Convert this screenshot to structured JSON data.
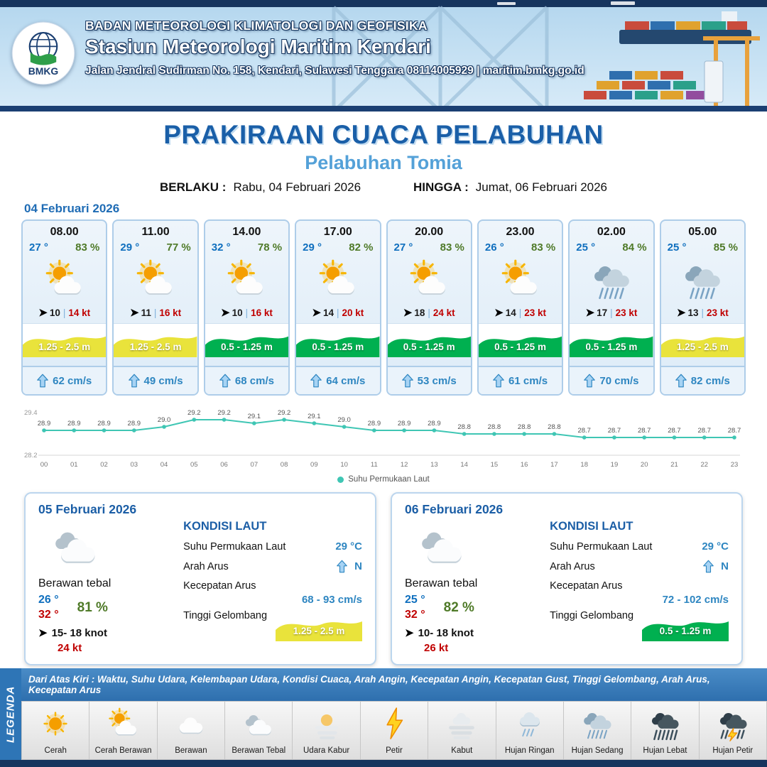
{
  "header": {
    "agency": "BADAN METEOROLOGI KLIMATOLOGI DAN GEOFISIKA",
    "station": "Stasiun Meteorologi Maritim Kendari",
    "address": "Jalan Jendral Sudirman No. 158, Kendari, Sulawesi Tenggara  08114005929 | maritim.bmkg.go.id",
    "logo_text": "BMKG"
  },
  "title": {
    "main": "PRAKIRAAN CUACA PELABUHAN",
    "subtitle": "Pelabuhan Tomia",
    "berlaku_label": "BERLAKU :",
    "berlaku_value": "Rabu, 04 Februari 2026",
    "hingga_label": "HINGGA :",
    "hingga_value": "Jumat, 06 Februari 2026"
  },
  "hourly": {
    "date": "04 Februari 2026",
    "cards": [
      {
        "time": "08.00",
        "temp": "27 °",
        "humidity": "83 %",
        "icon": "cerah-berawan",
        "wind": "10",
        "sep": "|",
        "gust": "14 kt",
        "wave": "1.25 - 2.5 m",
        "wave_color": "#e9e33b",
        "current": "62 cm/s"
      },
      {
        "time": "11.00",
        "temp": "29 °",
        "humidity": "77 %",
        "icon": "cerah-berawan",
        "wind": "11",
        "sep": "|",
        "gust": "16 kt",
        "wave": "1.25 - 2.5 m",
        "wave_color": "#e9e33b",
        "current": "49 cm/s"
      },
      {
        "time": "14.00",
        "temp": "32 °",
        "humidity": "78 %",
        "icon": "cerah-berawan",
        "wind": "10",
        "sep": "|",
        "gust": "16 kt",
        "wave": "0.5 - 1.25 m",
        "wave_color": "#00b050",
        "current": "68 cm/s"
      },
      {
        "time": "17.00",
        "temp": "29 °",
        "humidity": "82 %",
        "icon": "cerah-berawan",
        "wind": "14",
        "sep": "|",
        "gust": "20 kt",
        "wave": "0.5 - 1.25 m",
        "wave_color": "#00b050",
        "current": "64 cm/s"
      },
      {
        "time": "20.00",
        "temp": "27 °",
        "humidity": "83 %",
        "icon": "cerah-berawan",
        "wind": "18",
        "sep": "|",
        "gust": "24 kt",
        "wave": "0.5 - 1.25 m",
        "wave_color": "#00b050",
        "current": "53 cm/s"
      },
      {
        "time": "23.00",
        "temp": "26 °",
        "humidity": "83 %",
        "icon": "cerah-berawan",
        "wind": "14",
        "sep": "|",
        "gust": "23 kt",
        "wave": "0.5 - 1.25 m",
        "wave_color": "#00b050",
        "current": "61 cm/s"
      },
      {
        "time": "02.00",
        "temp": "25 °",
        "humidity": "84 %",
        "icon": "hujan-sedang",
        "wind": "17",
        "sep": "|",
        "gust": "23 kt",
        "wave": "0.5 - 1.25 m",
        "wave_color": "#00b050",
        "current": "70 cm/s"
      },
      {
        "time": "05.00",
        "temp": "25 °",
        "humidity": "85 %",
        "icon": "hujan-sedang",
        "wind": "13",
        "sep": "|",
        "gust": "23 kt",
        "wave": "1.25 - 2.5 m",
        "wave_color": "#e9e33b",
        "current": "82 cm/s"
      }
    ]
  },
  "chart_data": {
    "type": "line",
    "title": "",
    "legend": "Suhu Permukaan Laut",
    "x": [
      "00",
      "01",
      "02",
      "03",
      "04",
      "05",
      "06",
      "07",
      "08",
      "09",
      "10",
      "11",
      "12",
      "13",
      "14",
      "15",
      "16",
      "17",
      "18",
      "19",
      "20",
      "21",
      "22",
      "23"
    ],
    "values": [
      28.9,
      28.9,
      28.9,
      28.9,
      29.0,
      29.2,
      29.2,
      29.1,
      29.2,
      29.1,
      29.0,
      28.9,
      28.9,
      28.9,
      28.8,
      28.8,
      28.8,
      28.8,
      28.7,
      28.7,
      28.7,
      28.7,
      28.7,
      28.7
    ],
    "ylim": [
      28.2,
      29.4
    ],
    "line_color": "#3fc6b4",
    "grid": false,
    "legend_position": "bottom"
  },
  "daily": [
    {
      "date": "05 Februari 2026",
      "icon": "berawan-tebal",
      "condition": "Berawan tebal",
      "temp_min": "26 °",
      "temp_max": "32 °",
      "humidity": "81 %",
      "wind": "15- 18 knot",
      "gust": "24 kt",
      "sea_heading": "KONDISI LAUT",
      "sst_label": "Suhu Permukaan Laut",
      "sst_value": "29 °C",
      "dir_label": "Arah Arus",
      "dir_value": "N",
      "speed_label": "Kecepatan Arus",
      "speed_value": "68 - 93 cm/s",
      "wave_label": "Tinggi Gelombang",
      "wave_value": "1.25 - 2.5 m",
      "wave_color": "#e9e33b"
    },
    {
      "date": "06 Februari 2026",
      "icon": "berawan-tebal",
      "condition": "Berawan tebal",
      "temp_min": "25 °",
      "temp_max": "32 °",
      "humidity": "82 %",
      "wind": "10- 18 knot",
      "gust": "26 kt",
      "sea_heading": "KONDISI LAUT",
      "sst_label": "Suhu Permukaan Laut",
      "sst_value": "29 °C",
      "dir_label": "Arah Arus",
      "dir_value": "N",
      "speed_label": "Kecepatan Arus",
      "speed_value": "72 - 102 cm/s",
      "wave_label": "Tinggi Gelombang",
      "wave_value": "0.5 - 1.25 m",
      "wave_color": "#00b050"
    }
  ],
  "legend": {
    "side_label": "LEGENDA",
    "note": "Dari Atas Kiri : Waktu, Suhu Udara, Kelembapan Udara, Kondisi Cuaca, Arah Angin, Kecepatan Angin, Kecepatan Gust, Tinggi Gelombang, Arah Arus, Kecepatan Arus",
    "items": [
      {
        "icon": "cerah",
        "label": "Cerah"
      },
      {
        "icon": "cerah-berawan",
        "label": "Cerah Berawan"
      },
      {
        "icon": "berawan",
        "label": "Berawan"
      },
      {
        "icon": "berawan-tebal",
        "label": "Berawan Tebal"
      },
      {
        "icon": "udara-kabur",
        "label": "Udara Kabur"
      },
      {
        "icon": "petir",
        "label": "Petir"
      },
      {
        "icon": "kabut",
        "label": "Kabut"
      },
      {
        "icon": "hujan-ringan",
        "label": "Hujan Ringan"
      },
      {
        "icon": "hujan-sedang",
        "label": "Hujan Sedang"
      },
      {
        "icon": "hujan-lebat",
        "label": "Hujan Lebat"
      },
      {
        "icon": "hujan-petir",
        "label": "Hujan Petir"
      }
    ]
  },
  "colors": {
    "accent_blue": "#1a5fa8",
    "subtitle_blue": "#54a1d8",
    "temp_blue": "#0f6fbe",
    "humidity_green": "#4f7a28",
    "gust_red": "#c00000",
    "current_blue": "#2e86c1",
    "wave_yellow": "#e9e33b",
    "wave_green": "#00b050",
    "header_navy": "#16355e",
    "chart_teal": "#3fc6b4"
  }
}
